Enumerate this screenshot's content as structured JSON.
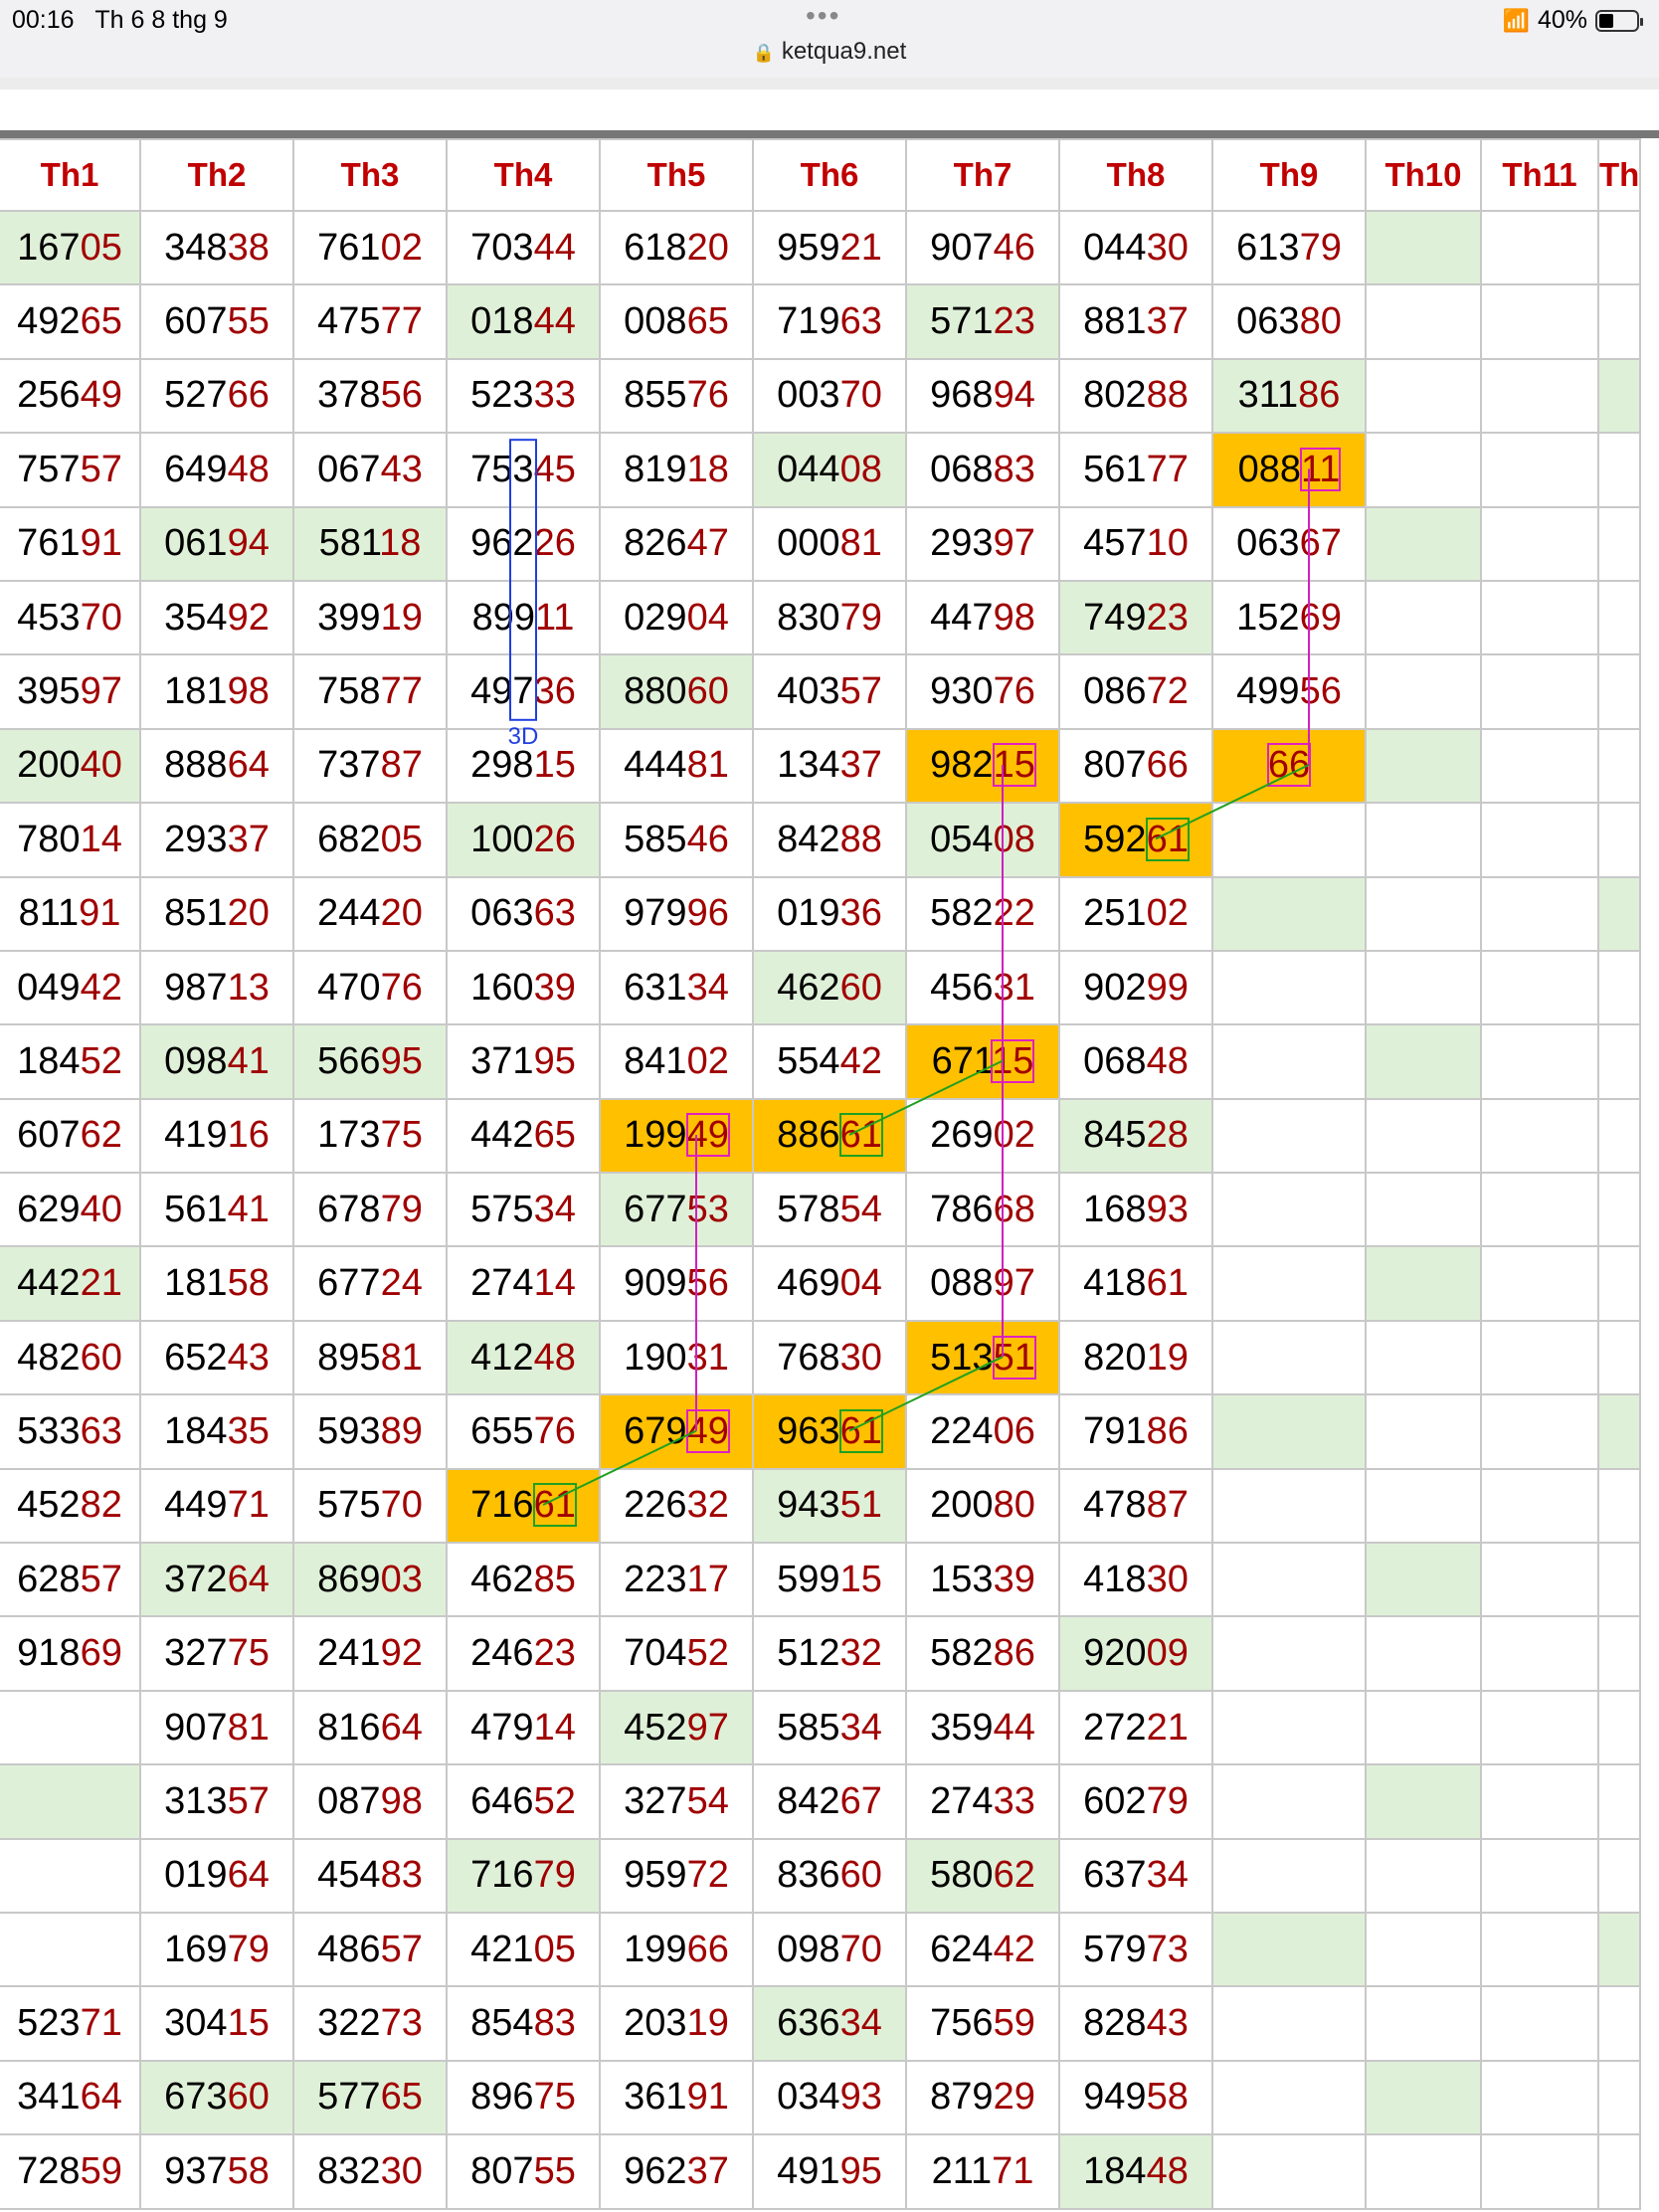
{
  "status_bar": {
    "time": "00:16",
    "date": "Th 6 8 thg 9",
    "url": "ketqua9.net",
    "battery": "40%",
    "battery_level": 0.4
  },
  "columns": [
    "Th1",
    "Th2",
    "Th3",
    "Th4",
    "Th5",
    "Th6",
    "Th7",
    "Th8",
    "Th9",
    "Th10",
    "Th11",
    "Th"
  ],
  "rows": [
    [
      "16705",
      "34838",
      "76102",
      "70344",
      "61820",
      "95921",
      "90746",
      "04430",
      "61379",
      "",
      "",
      ""
    ],
    [
      "49265",
      "60755",
      "47577",
      "01844",
      "00865",
      "71963",
      "57123",
      "88137",
      "06380",
      "",
      "",
      ""
    ],
    [
      "25649",
      "52766",
      "37856",
      "52333",
      "85576",
      "00370",
      "96894",
      "80288",
      "31186",
      "",
      "",
      ""
    ],
    [
      "75757",
      "64948",
      "06743",
      "75345",
      "81918",
      "04408",
      "06883",
      "56177",
      "08811",
      "",
      "",
      ""
    ],
    [
      "76191",
      "06194",
      "58118",
      "96226",
      "82647",
      "00081",
      "29397",
      "45710",
      "06367",
      "",
      "",
      ""
    ],
    [
      "45370",
      "35492",
      "39919",
      "89911",
      "02904",
      "83079",
      "44798",
      "74923",
      "15269",
      "",
      "",
      ""
    ],
    [
      "39597",
      "18198",
      "75877",
      "49736",
      "88060",
      "40357",
      "93076",
      "08672",
      "49956",
      "",
      "",
      ""
    ],
    [
      "20040",
      "88864",
      "73787",
      "29815",
      "44481",
      "13437",
      "98215",
      "80766",
      "66",
      "",
      "",
      ""
    ],
    [
      "78014",
      "29337",
      "68205",
      "10026",
      "58546",
      "84288",
      "05408",
      "59261",
      "",
      "",
      "",
      ""
    ],
    [
      "81191",
      "85120",
      "24420",
      "06363",
      "97996",
      "01936",
      "58222",
      "25102",
      "",
      "",
      "",
      ""
    ],
    [
      "04942",
      "98713",
      "47076",
      "16039",
      "63134",
      "46260",
      "45631",
      "90299",
      "",
      "",
      "",
      ""
    ],
    [
      "18452",
      "09841",
      "56695",
      "37195",
      "84102",
      "55442",
      "67115",
      "06848",
      "",
      "",
      "",
      ""
    ],
    [
      "60762",
      "41916",
      "17375",
      "44265",
      "19949",
      "88661",
      "26902",
      "84528",
      "",
      "",
      "",
      ""
    ],
    [
      "62940",
      "56141",
      "67879",
      "57534",
      "67753",
      "57854",
      "78668",
      "16893",
      "",
      "",
      "",
      ""
    ],
    [
      "44221",
      "18158",
      "67724",
      "27414",
      "90956",
      "46904",
      "08897",
      "41861",
      "",
      "",
      "",
      ""
    ],
    [
      "48260",
      "65243",
      "89581",
      "41248",
      "19031",
      "76830",
      "51351",
      "82019",
      "",
      "",
      "",
      ""
    ],
    [
      "53363",
      "18435",
      "59389",
      "65576",
      "67949",
      "96361",
      "22406",
      "79186",
      "",
      "",
      "",
      ""
    ],
    [
      "45282",
      "44971",
      "57570",
      "71661",
      "22632",
      "94351",
      "20080",
      "47887",
      "",
      "",
      "",
      ""
    ],
    [
      "62857",
      "37264",
      "86903",
      "46285",
      "22317",
      "59915",
      "15339",
      "41830",
      "",
      "",
      "",
      ""
    ],
    [
      "91869",
      "32775",
      "24192",
      "24623",
      "70452",
      "51232",
      "58286",
      "92009",
      "",
      "",
      "",
      ""
    ],
    [
      "",
      "90781",
      "81664",
      "47914",
      "45297",
      "58534",
      "35944",
      "27221",
      "",
      "",
      "",
      ""
    ],
    [
      "",
      "31357",
      "08798",
      "64652",
      "32754",
      "84267",
      "27433",
      "60279",
      "",
      "",
      "",
      ""
    ],
    [
      "",
      "01964",
      "45483",
      "71679",
      "95972",
      "83660",
      "58062",
      "63734",
      "",
      "",
      "",
      ""
    ],
    [
      "",
      "16979",
      "48657",
      "42105",
      "19966",
      "09870",
      "62442",
      "57973",
      "",
      "",
      "",
      ""
    ],
    [
      "52371",
      "30415",
      "32273",
      "85483",
      "20319",
      "63634",
      "75659",
      "82843",
      "",
      "",
      "",
      ""
    ],
    [
      "34164",
      "67360",
      "57765",
      "89675",
      "36191",
      "03493",
      "87929",
      "94958",
      "",
      "",
      "",
      ""
    ],
    [
      "72859",
      "93758",
      "83230",
      "80755",
      "96237",
      "49195",
      "21171",
      "18448",
      "",
      "",
      "",
      ""
    ]
  ],
  "green_cells": [
    "0-0",
    "0-9",
    "1-3",
    "1-6",
    "2-8",
    "2-11",
    "3-5",
    "4-1",
    "4-2",
    "4-9",
    "5-7",
    "6-4",
    "7-0",
    "7-9",
    "8-3",
    "8-6",
    "9-8",
    "9-11",
    "10-5",
    "11-1",
    "11-2",
    "11-9",
    "12-7",
    "13-4",
    "14-0",
    "14-9",
    "15-3",
    "16-8",
    "16-11",
    "17-5",
    "18-1",
    "18-2",
    "18-9",
    "19-7",
    "20-4",
    "21-0",
    "21-9",
    "22-3",
    "22-6",
    "23-8",
    "23-11",
    "24-5",
    "25-1",
    "25-2",
    "25-9",
    "26-7"
  ],
  "orange_cells": [
    "3-8",
    "7-6",
    "7-8",
    "8-7",
    "11-6",
    "12-4",
    "12-5",
    "15-6",
    "16-4",
    "16-5",
    "17-3"
  ],
  "pink_boxes": [
    "3-8",
    "7-6",
    "7-8",
    "11-6",
    "12-4",
    "15-6",
    "16-4"
  ],
  "green_boxes": [
    "8-7",
    "12-5",
    "16-5",
    "17-3"
  ],
  "annotation": {
    "label": "3D"
  }
}
